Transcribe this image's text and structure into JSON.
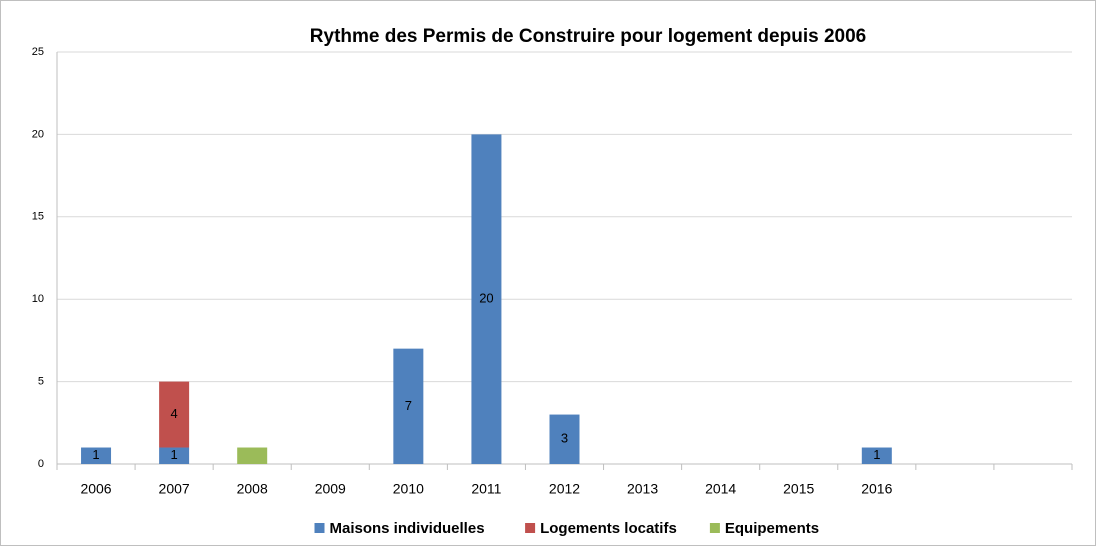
{
  "chart_data": {
    "type": "stacked_bar",
    "title": "Rythme des Permis de Construire pour logement depuis 2006",
    "categories": [
      "2006",
      "2007",
      "2008",
      "2009",
      "2010",
      "2011",
      "2012",
      "2013",
      "2014",
      "2015",
      "2016",
      null,
      null
    ],
    "series": [
      {
        "name": "Maisons individuelles",
        "color": "#4f81bd",
        "data_labels": true,
        "values": [
          1,
          1,
          null,
          null,
          7,
          20,
          3,
          null,
          null,
          null,
          1,
          null,
          null
        ]
      },
      {
        "name": "Logements locatifs",
        "color": "#c0504d",
        "data_labels": true,
        "values": [
          null,
          4,
          null,
          null,
          null,
          null,
          null,
          null,
          null,
          null,
          null,
          null,
          null
        ]
      },
      {
        "name": "Equipements",
        "color": "#9bbb59",
        "data_labels": false,
        "values": [
          null,
          null,
          1,
          null,
          null,
          null,
          null,
          null,
          null,
          null,
          null,
          null,
          null
        ]
      }
    ],
    "ylim": [
      0,
      25
    ],
    "yticks": [
      0,
      5,
      10,
      15,
      20,
      25
    ],
    "grid": true,
    "legend": "bottom"
  }
}
